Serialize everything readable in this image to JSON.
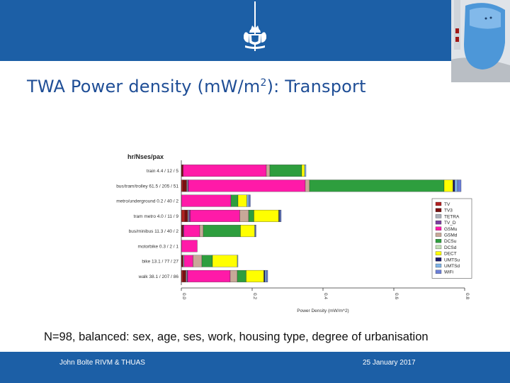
{
  "header": {
    "crest_icon": "dutch-coat-of-arms",
    "photo_icon": "exposimeter-device-photo",
    "bar_color": "#1c5fa6"
  },
  "slide": {
    "title_main": "TWA Power density (mW/m",
    "title_sup": "2",
    "title_end": "): Transport",
    "caption": "N=98, balanced: sex, age, ses, work, housing type, degree of urbanisation"
  },
  "footer": {
    "left": "John Bolte RIVM & THUAS",
    "right": "25 January 2017"
  },
  "chart_data": {
    "type": "bar",
    "orientation": "horizontal",
    "stacked": true,
    "title": "hr/Nses/pax",
    "xlabel": "Power Density (mW/m^2)",
    "ylabel": "",
    "xlim": [
      0,
      0.8
    ],
    "xticks": [
      "0.0",
      "0.2",
      "0.4",
      "0.6",
      "0.8"
    ],
    "legend_position": "right",
    "categories": [
      "train 4.4 / 12 / 5",
      "bus/tram/trolley 61.5 / 205 / 51",
      "metro/underground 0.2 / 40 / 2",
      "tram metro 4.0 / 11 / 9",
      "bus/minibus 11.3 / 40 / 2",
      "motorbike 0.3 / 2 / 1",
      "bike 13.1 / 77 / 27",
      "walk 38.1 / 207 / 86"
    ],
    "series": [
      {
        "name": "TV",
        "color": "#b22222",
        "values": [
          0.0,
          0.005,
          0.0,
          0.01,
          0.0,
          0.0,
          0.0,
          0.005
        ]
      },
      {
        "name": "TV3",
        "color": "#7a1010",
        "values": [
          0.005,
          0.01,
          0.0,
          0.008,
          0.005,
          0.0,
          0.005,
          0.008
        ]
      },
      {
        "name": "TETRA",
        "color": "#aab0bb",
        "values": [
          0.0,
          0.003,
          0.0,
          0.003,
          0.0,
          0.0,
          0.003,
          0.003
        ]
      },
      {
        "name": "TV_D",
        "color": "#7b3fa0",
        "values": [
          0.0,
          0.002,
          0.0,
          0.004,
          0.002,
          0.0,
          0.0,
          0.002
        ]
      },
      {
        "name": "GSMu",
        "color": "#ff1aa8",
        "values": [
          0.235,
          0.33,
          0.14,
          0.14,
          0.045,
          0.045,
          0.025,
          0.12
        ]
      },
      {
        "name": "GSMd",
        "color": "#c8a898",
        "values": [
          0.01,
          0.012,
          0.0,
          0.025,
          0.01,
          0.0,
          0.025,
          0.02
        ]
      },
      {
        "name": "DCSu",
        "color": "#2e9e3e",
        "values": [
          0.09,
          0.38,
          0.02,
          0.015,
          0.105,
          0.0,
          0.03,
          0.025
        ]
      },
      {
        "name": "DCSd",
        "color": "#c4e0b8",
        "values": [
          0.0,
          0.0,
          0.0,
          0.0,
          0.0,
          0.0,
          0.0,
          0.0
        ]
      },
      {
        "name": "DECT",
        "color": "#ffff00",
        "values": [
          0.008,
          0.025,
          0.025,
          0.07,
          0.04,
          0.0,
          0.07,
          0.05
        ]
      },
      {
        "name": "UMTSu",
        "color": "#1a1a6a",
        "values": [
          0.0,
          0.005,
          0.0,
          0.002,
          0.0,
          0.0,
          0.0,
          0.003
        ]
      },
      {
        "name": "UMTSd",
        "color": "#7fb3e6",
        "values": [
          0.004,
          0.008,
          0.006,
          0.002,
          0.002,
          0.0,
          0.002,
          0.004
        ]
      },
      {
        "name": "WiFi",
        "color": "#6b7fd9",
        "values": [
          0.0,
          0.01,
          0.004,
          0.003,
          0.002,
          0.0,
          0.0,
          0.004
        ]
      }
    ]
  }
}
